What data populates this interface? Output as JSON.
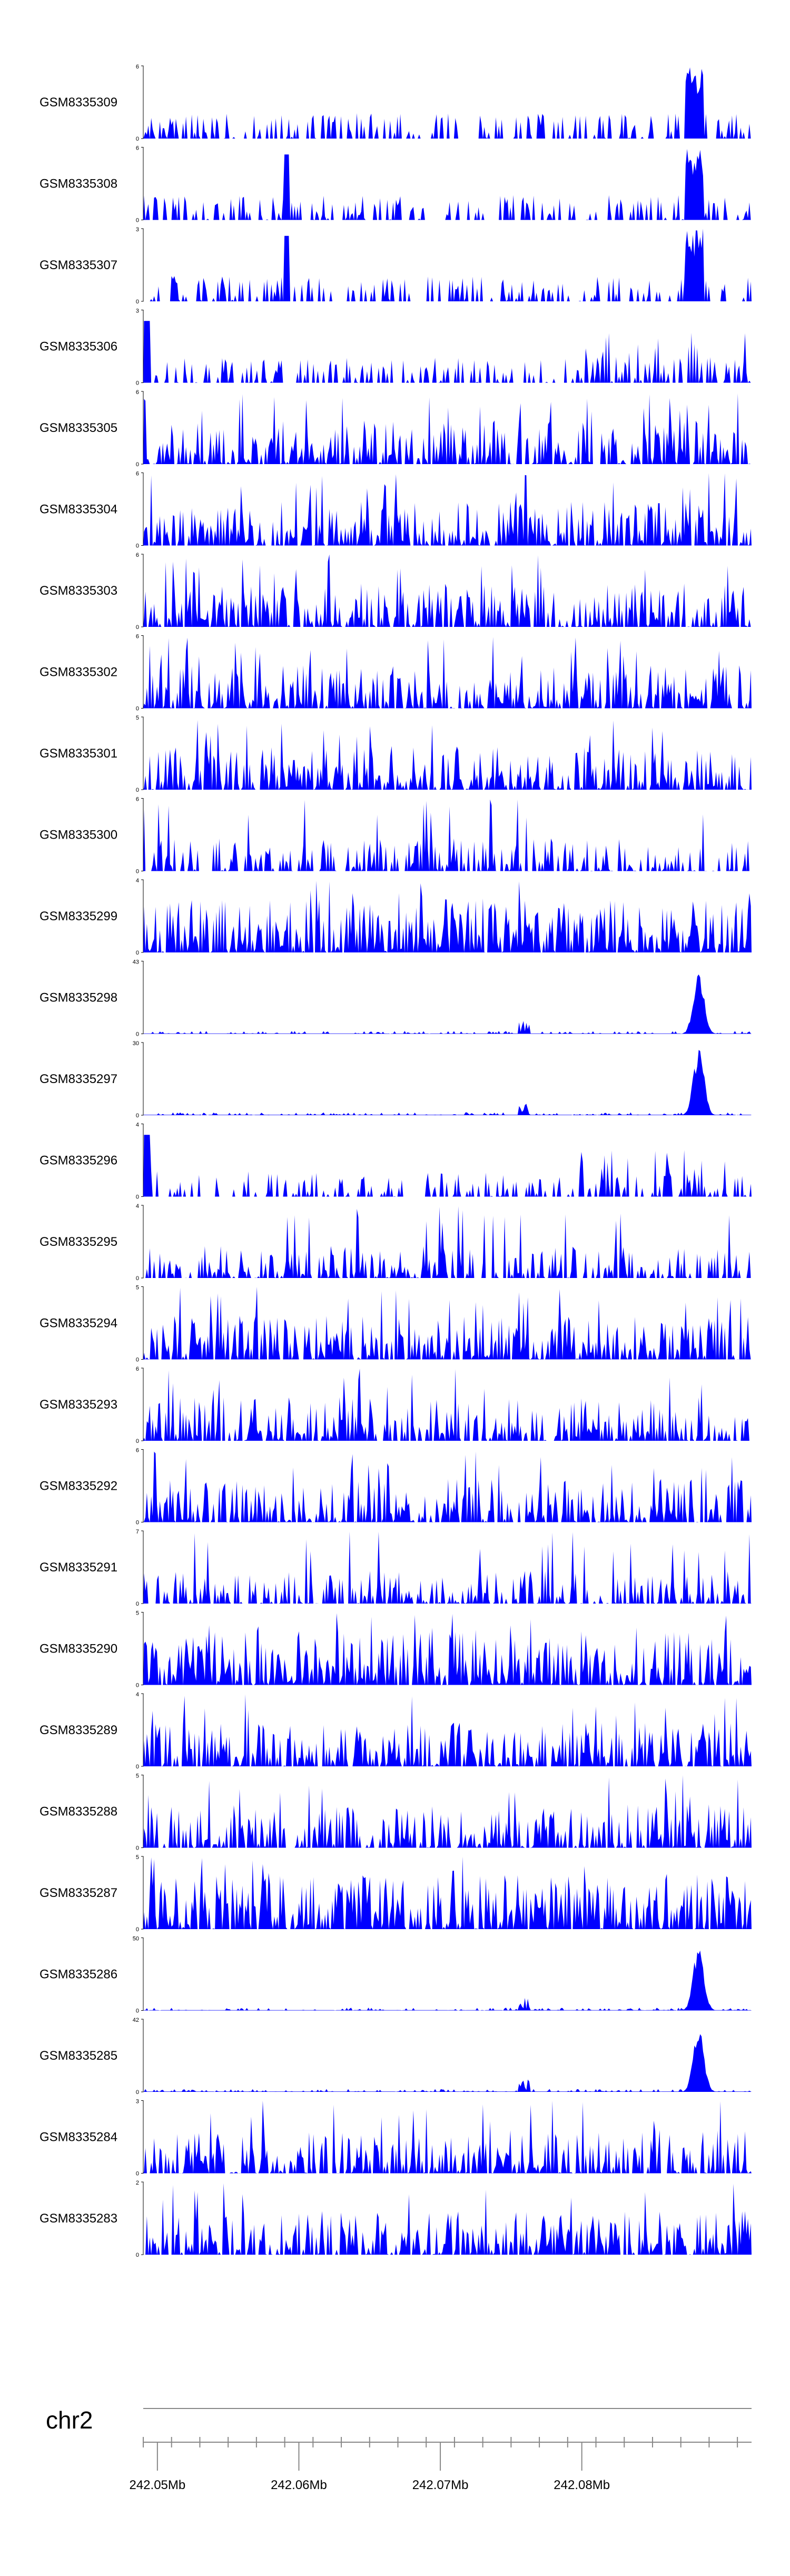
{
  "chart_data": {
    "type": "area",
    "colors": {
      "fill": "#0000ff",
      "axis": "#000000",
      "ruler": "#888888"
    },
    "x_range": [
      242044000,
      242087000
    ],
    "tracks": [
      {
        "name": "GSM8335309",
        "ymax": 6,
        "profile": "sparse-lateb"
      },
      {
        "name": "GSM8335308",
        "ymax": 6,
        "profile": "sparse-late"
      },
      {
        "name": "GSM8335307",
        "ymax": 3,
        "profile": "sparse-late"
      },
      {
        "name": "GSM8335306",
        "ymax": 3,
        "profile": "sparse-early"
      },
      {
        "name": "GSM8335305",
        "ymax": 6,
        "profile": "dense"
      },
      {
        "name": "GSM8335304",
        "ymax": 6,
        "profile": "dense"
      },
      {
        "name": "GSM8335303",
        "ymax": 6,
        "profile": "dense"
      },
      {
        "name": "GSM8335302",
        "ymax": 6,
        "profile": "dense"
      },
      {
        "name": "GSM8335301",
        "ymax": 5,
        "profile": "dense"
      },
      {
        "name": "GSM8335300",
        "ymax": 6,
        "profile": "dense-low"
      },
      {
        "name": "GSM8335299",
        "ymax": 4,
        "profile": "dense-high"
      },
      {
        "name": "GSM8335298",
        "ymax": 43,
        "profile": "peak"
      },
      {
        "name": "GSM8335297",
        "ymax": 30,
        "profile": "peak"
      },
      {
        "name": "GSM8335296",
        "ymax": 4,
        "profile": "sparse-early"
      },
      {
        "name": "GSM8335295",
        "ymax": 4,
        "profile": "dense-low"
      },
      {
        "name": "GSM8335294",
        "ymax": 5,
        "profile": "dense"
      },
      {
        "name": "GSM8335293",
        "ymax": 6,
        "profile": "dense"
      },
      {
        "name": "GSM8335292",
        "ymax": 6,
        "profile": "dense"
      },
      {
        "name": "GSM8335291",
        "ymax": 7,
        "profile": "dense-low"
      },
      {
        "name": "GSM8335290",
        "ymax": 5,
        "profile": "dense-high"
      },
      {
        "name": "GSM8335289",
        "ymax": 4,
        "profile": "dense"
      },
      {
        "name": "GSM8335288",
        "ymax": 5,
        "profile": "dense"
      },
      {
        "name": "GSM8335287",
        "ymax": 5,
        "profile": "dense-high"
      },
      {
        "name": "GSM8335286",
        "ymax": 50,
        "profile": "peak"
      },
      {
        "name": "GSM8335285",
        "ymax": 42,
        "profile": "peak"
      },
      {
        "name": "GSM8335284",
        "ymax": 3,
        "profile": "dense"
      },
      {
        "name": "GSM8335283",
        "ymax": 2,
        "profile": "dense"
      }
    ],
    "chromosome": "chr2",
    "axis": {
      "major_ticks": [
        {
          "value": 242045000,
          "label": "242.05Mb"
        },
        {
          "value": 242055000,
          "label": "242.06Mb"
        },
        {
          "value": 242065000,
          "label": "242.07Mb"
        },
        {
          "value": 242075000,
          "label": "242.08Mb"
        }
      ],
      "minor_tick_step": 2000
    }
  }
}
